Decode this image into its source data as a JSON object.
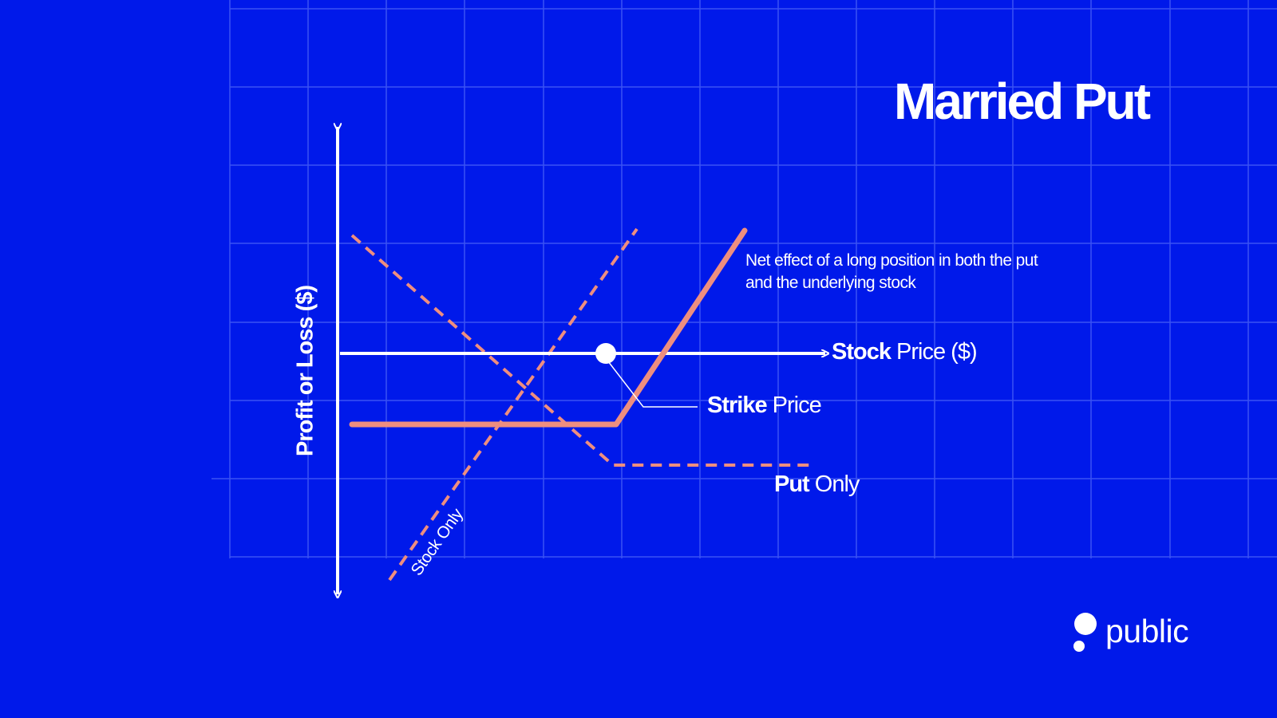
{
  "title": "Married Put",
  "labels": {
    "y_axis": "Profit or Loss ($)",
    "x_axis_bold": "Stock",
    "x_axis_rest": " Price ($)",
    "strike_bold": "Strike",
    "strike_rest": " Price",
    "put_bold": "Put",
    "put_rest": " Only",
    "stock_only": "Stock Only",
    "net_effect": "Net effect of a long position in both the put and the underlying stock"
  },
  "logo": {
    "text": "public"
  },
  "colors": {
    "background": "#0019ea",
    "grid": "#3a52f3",
    "axis": "#ffffff",
    "payoff": "#ee8e7f"
  }
}
